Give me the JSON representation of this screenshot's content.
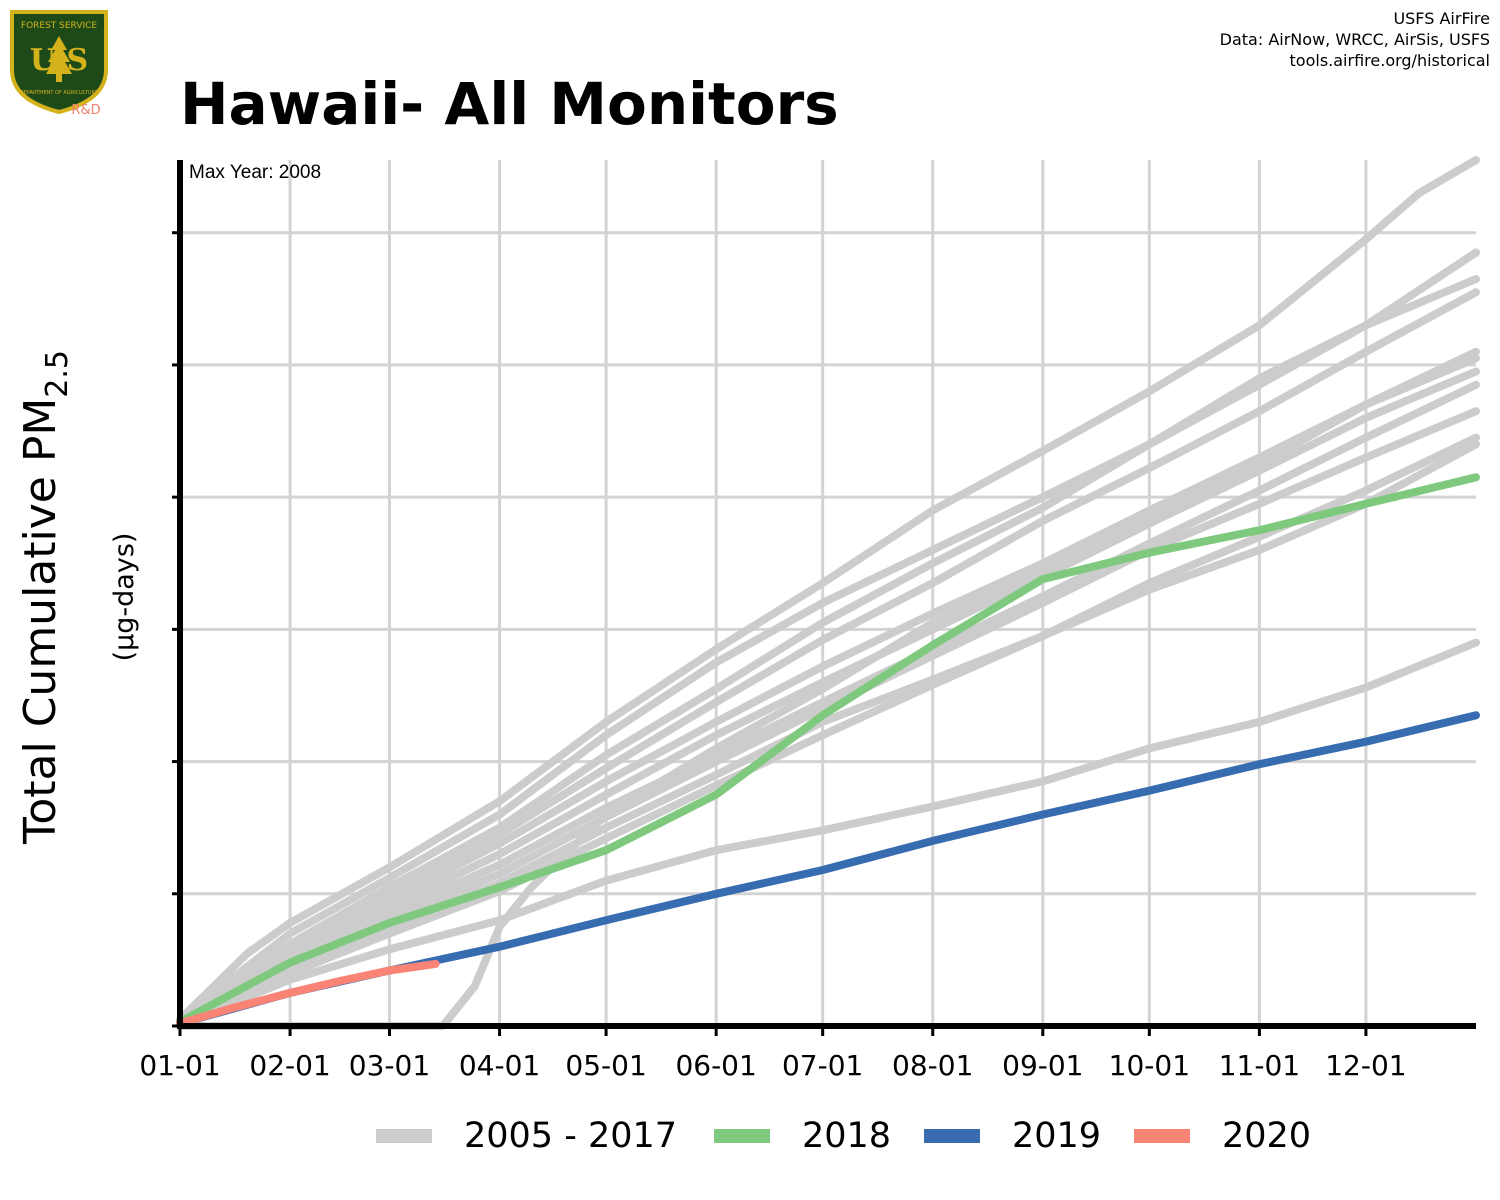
{
  "header": {
    "title": "Hawaii- All Monitors",
    "credits": [
      "USFS AirFire",
      "Data: AirNow, WRCC, AirSis, USFS",
      "tools.airfire.org/historical"
    ]
  },
  "logo": {
    "top_text": "FOREST SERVICE",
    "letters": "U S",
    "bottom_text": "DEPARTMENT OF AGRICULTURE",
    "tag": "R&D",
    "colors": {
      "shield": "#1e4a1a",
      "border": "#d4b21b",
      "tag": "#f08070"
    }
  },
  "chart_data": {
    "type": "line",
    "title": "Hawaii- All Monitors",
    "annotation": "Max Year: 2008",
    "ylabel_main": "Total Cumulative PM",
    "ylabel_sub": "2.5",
    "ylabel_units": "(µg-days)",
    "xlabel": "",
    "x_unit": "day_of_year",
    "xlim": [
      1,
      366
    ],
    "ylim": [
      0,
      6.55
    ],
    "y_tick_values": [
      0,
      1,
      2,
      3,
      4,
      5,
      6
    ],
    "y_tick_labels_shown": false,
    "x_tick_labels": [
      "01-01",
      "02-01",
      "03-01",
      "04-01",
      "05-01",
      "06-01",
      "07-01",
      "08-01",
      "09-01",
      "10-01",
      "11-01",
      "12-01"
    ],
    "x_tick_days": [
      1,
      32,
      60,
      91,
      121,
      152,
      182,
      213,
      244,
      274,
      305,
      335
    ],
    "grid": true,
    "legend_position": "bottom",
    "legend": [
      {
        "label": "2005 - 2017",
        "color": "#cccccc"
      },
      {
        "label": "2018",
        "color": "#7fc97f"
      },
      {
        "label": "2019",
        "color": "#386cb0"
      },
      {
        "label": "2020",
        "color": "#f98374"
      }
    ],
    "background_series": [
      {
        "x": [
          1,
          20,
          32,
          60,
          91,
          121,
          152,
          182,
          213,
          244,
          274,
          305,
          335,
          350,
          366
        ],
        "y": [
          0.05,
          0.55,
          0.78,
          1.2,
          1.7,
          2.3,
          2.85,
          3.35,
          3.9,
          4.35,
          4.8,
          5.3,
          5.95,
          6.3,
          6.55
        ]
      },
      {
        "x": [
          1,
          20,
          32,
          60,
          91,
          121,
          152,
          182,
          213,
          244,
          274,
          305,
          335,
          366
        ],
        "y": [
          0.04,
          0.45,
          0.7,
          1.12,
          1.6,
          2.2,
          2.75,
          3.2,
          3.6,
          4.0,
          4.4,
          4.85,
          5.3,
          5.85
        ]
      },
      {
        "x": [
          1,
          20,
          32,
          60,
          91,
          121,
          152,
          182,
          213,
          244,
          274,
          305,
          335,
          366
        ],
        "y": [
          0.04,
          0.4,
          0.62,
          1.05,
          1.5,
          2.05,
          2.55,
          3.05,
          3.5,
          3.92,
          4.4,
          4.9,
          5.3,
          5.65
        ]
      },
      {
        "x": [
          1,
          20,
          32,
          60,
          91,
          121,
          152,
          182,
          213,
          244,
          274,
          305,
          335,
          366
        ],
        "y": [
          0.03,
          0.38,
          0.6,
          1.0,
          1.45,
          1.95,
          2.45,
          2.92,
          3.35,
          3.82,
          4.22,
          4.65,
          5.1,
          5.55
        ]
      },
      {
        "x": [
          1,
          20,
          32,
          60,
          91,
          121,
          152,
          182,
          213,
          244,
          274,
          305,
          335,
          366
        ],
        "y": [
          0.03,
          0.36,
          0.55,
          0.95,
          1.38,
          1.85,
          2.3,
          2.72,
          3.12,
          3.5,
          3.9,
          4.3,
          4.7,
          5.05
        ]
      },
      {
        "x": [
          1,
          20,
          32,
          60,
          91,
          121,
          152,
          182,
          213,
          244,
          274,
          305,
          335,
          366
        ],
        "y": [
          0.03,
          0.33,
          0.52,
          0.9,
          1.3,
          1.75,
          2.2,
          2.6,
          3.0,
          3.4,
          3.8,
          4.2,
          4.6,
          4.95
        ]
      },
      {
        "x": [
          1,
          20,
          32,
          60,
          91,
          121,
          152,
          182,
          213,
          244,
          274,
          305,
          335,
          366
        ],
        "y": [
          0.03,
          0.3,
          0.48,
          0.85,
          1.22,
          1.65,
          2.05,
          2.45,
          2.85,
          3.25,
          3.65,
          4.05,
          4.45,
          4.85
        ]
      },
      {
        "x": [
          1,
          20,
          32,
          60,
          91,
          121,
          152,
          182,
          213,
          244,
          274,
          305,
          335,
          366
        ],
        "y": [
          0.02,
          0.28,
          0.45,
          0.8,
          1.15,
          1.58,
          2.0,
          2.4,
          2.8,
          3.2,
          3.6,
          3.95,
          4.3,
          4.65
        ]
      },
      {
        "x": [
          1,
          20,
          32,
          60,
          91,
          121,
          152,
          182,
          213,
          244,
          274,
          305,
          335,
          366
        ],
        "y": [
          0.02,
          0.26,
          0.42,
          0.75,
          1.08,
          1.5,
          1.9,
          2.3,
          2.62,
          2.95,
          3.3,
          3.6,
          3.95,
          4.4
        ]
      },
      {
        "x": [
          1,
          20,
          32,
          60,
          91,
          121,
          152,
          182,
          213,
          244,
          274,
          305,
          335,
          366
        ],
        "y": [
          0.02,
          0.25,
          0.4,
          0.7,
          1.02,
          1.42,
          1.82,
          2.2,
          2.58,
          2.95,
          3.35,
          3.7,
          4.05,
          4.45
        ]
      },
      {
        "x": [
          1,
          32,
          60,
          75,
          84,
          91,
          100,
          121,
          152,
          182,
          213,
          244,
          274,
          305,
          335,
          366
        ],
        "y": [
          0,
          0,
          0,
          0,
          0.3,
          0.75,
          1.05,
          1.6,
          2.1,
          2.55,
          3.05,
          3.45,
          3.85,
          4.25,
          4.7,
          5.1
        ]
      },
      {
        "x": [
          1,
          20,
          32,
          60,
          91,
          121,
          152,
          182,
          213,
          244,
          274,
          305,
          335,
          366
        ],
        "y": [
          0.02,
          0.22,
          0.35,
          0.58,
          0.8,
          1.1,
          1.33,
          1.48,
          1.66,
          1.85,
          2.1,
          2.3,
          2.56,
          2.9
        ]
      }
    ],
    "series": [
      {
        "name": "2018",
        "color": "#7fc97f",
        "x": [
          1,
          32,
          60,
          91,
          121,
          152,
          182,
          213,
          244,
          274,
          305,
          335,
          366
        ],
        "y": [
          0.03,
          0.48,
          0.78,
          1.05,
          1.33,
          1.75,
          2.35,
          2.88,
          3.38,
          3.58,
          3.75,
          3.95,
          4.15
        ]
      },
      {
        "name": "2019",
        "color": "#386cb0",
        "x": [
          1,
          32,
          60,
          91,
          121,
          152,
          182,
          213,
          244,
          274,
          305,
          335,
          366
        ],
        "y": [
          0.02,
          0.25,
          0.42,
          0.6,
          0.8,
          1.0,
          1.18,
          1.4,
          1.6,
          1.78,
          1.98,
          2.15,
          2.35
        ]
      },
      {
        "name": "2020",
        "color": "#f98374",
        "x": [
          1,
          15,
          32,
          46,
          60,
          73
        ],
        "y": [
          0.02,
          0.13,
          0.25,
          0.34,
          0.42,
          0.47
        ]
      }
    ]
  }
}
